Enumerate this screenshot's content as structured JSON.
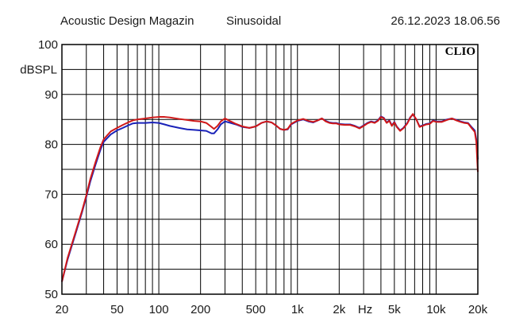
{
  "header": {
    "publisher": "Acoustic Design Magazin",
    "mode": "Sinusoidal",
    "timestamp": "26.12.2023 18.06.56"
  },
  "chart_data": {
    "type": "line",
    "brand": "CLIO",
    "ylabel": "dBSPL",
    "xunit": "Hz",
    "xscale": "log",
    "xlim": [
      20,
      20000
    ],
    "ylim": [
      50,
      100
    ],
    "yticks": [
      "50",
      "60",
      "70",
      "80",
      "90",
      "100"
    ],
    "xtick_labels": [
      {
        "value": 20,
        "label": "20"
      },
      {
        "value": 50,
        "label": "50"
      },
      {
        "value": 100,
        "label": "100"
      },
      {
        "value": 200,
        "label": "200"
      },
      {
        "value": 500,
        "label": "500"
      },
      {
        "value": 1000,
        "label": "1k"
      },
      {
        "value": 2000,
        "label": "2k"
      },
      {
        "value": 5000,
        "label": "5k"
      },
      {
        "value": 10000,
        "label": "10k"
      },
      {
        "value": 20000,
        "label": "20k"
      }
    ],
    "grid": true,
    "colors": {
      "series_red": "#d01818",
      "series_blue": "#1a22b8",
      "grid": "#000000"
    },
    "series": [
      {
        "color": "#1a22b8",
        "points": [
          [
            20,
            52.5
          ],
          [
            22,
            57
          ],
          [
            25,
            62
          ],
          [
            28,
            66.5
          ],
          [
            30,
            69.5
          ],
          [
            32,
            72.5
          ],
          [
            35,
            76
          ],
          [
            38,
            79
          ],
          [
            40,
            80.5
          ],
          [
            45,
            82
          ],
          [
            50,
            82.8
          ],
          [
            55,
            83.3
          ],
          [
            60,
            83.8
          ],
          [
            65,
            84.2
          ],
          [
            70,
            84.3
          ],
          [
            80,
            84.3
          ],
          [
            90,
            84.4
          ],
          [
            100,
            84.3
          ],
          [
            110,
            84
          ],
          [
            120,
            83.7
          ],
          [
            140,
            83.3
          ],
          [
            160,
            83
          ],
          [
            180,
            82.9
          ],
          [
            200,
            82.8
          ],
          [
            220,
            82.7
          ],
          [
            240,
            82.2
          ],
          [
            250,
            82.2
          ],
          [
            265,
            83
          ],
          [
            280,
            84
          ],
          [
            300,
            84.6
          ],
          [
            330,
            84.3
          ],
          [
            360,
            84
          ],
          [
            400,
            83.5
          ],
          [
            450,
            83.3
          ],
          [
            500,
            83.6
          ],
          [
            550,
            84.3
          ],
          [
            600,
            84.6
          ],
          [
            650,
            84.4
          ],
          [
            700,
            83.8
          ],
          [
            750,
            83.1
          ],
          [
            800,
            82.9
          ],
          [
            850,
            83
          ],
          [
            900,
            84
          ],
          [
            1000,
            84.7
          ],
          [
            1100,
            85
          ],
          [
            1200,
            84.6
          ],
          [
            1300,
            84.4
          ],
          [
            1400,
            84.8
          ],
          [
            1500,
            85.2
          ],
          [
            1600,
            84.7
          ],
          [
            1700,
            84.4
          ],
          [
            1800,
            84.3
          ],
          [
            1900,
            84.3
          ],
          [
            2000,
            84.1
          ],
          [
            2200,
            84
          ],
          [
            2400,
            84
          ],
          [
            2600,
            83.7
          ],
          [
            2800,
            83.3
          ],
          [
            3000,
            83.8
          ],
          [
            3200,
            84.3
          ],
          [
            3400,
            84.6
          ],
          [
            3600,
            84.4
          ],
          [
            3800,
            84.8
          ],
          [
            4000,
            85.6
          ],
          [
            4200,
            85.3
          ],
          [
            4400,
            84.4
          ],
          [
            4600,
            84.8
          ],
          [
            4800,
            83.8
          ],
          [
            5000,
            84.5
          ],
          [
            5200,
            83.6
          ],
          [
            5500,
            82.8
          ],
          [
            5800,
            83.3
          ],
          [
            6200,
            84.3
          ],
          [
            6500,
            85.4
          ],
          [
            6800,
            86
          ],
          [
            7200,
            85
          ],
          [
            7600,
            83.6
          ],
          [
            8000,
            83.8
          ],
          [
            8500,
            84.1
          ],
          [
            9000,
            84.2
          ],
          [
            9500,
            84.8
          ],
          [
            10000,
            84.6
          ],
          [
            11000,
            84.6
          ],
          [
            12000,
            85
          ],
          [
            13000,
            85.2
          ],
          [
            14000,
            84.9
          ],
          [
            15000,
            84.6
          ],
          [
            16000,
            84.4
          ],
          [
            17000,
            84.3
          ],
          [
            18000,
            83.5
          ],
          [
            19000,
            82.8
          ],
          [
            19500,
            81
          ],
          [
            20000,
            77
          ]
        ]
      },
      {
        "color": "#d01818",
        "points": [
          [
            20,
            52.5
          ],
          [
            22,
            57.3
          ],
          [
            25,
            62.3
          ],
          [
            28,
            66.8
          ],
          [
            30,
            69.8
          ],
          [
            32,
            73
          ],
          [
            35,
            76.5
          ],
          [
            38,
            79.5
          ],
          [
            40,
            81
          ],
          [
            45,
            82.6
          ],
          [
            50,
            83.3
          ],
          [
            55,
            83.9
          ],
          [
            60,
            84.4
          ],
          [
            65,
            84.8
          ],
          [
            70,
            85
          ],
          [
            80,
            85.2
          ],
          [
            90,
            85.4
          ],
          [
            100,
            85.5
          ],
          [
            110,
            85.5
          ],
          [
            120,
            85.4
          ],
          [
            140,
            85.1
          ],
          [
            160,
            84.9
          ],
          [
            180,
            84.7
          ],
          [
            200,
            84.6
          ],
          [
            220,
            84.3
          ],
          [
            240,
            83.5
          ],
          [
            250,
            83.1
          ],
          [
            265,
            83.7
          ],
          [
            280,
            84.6
          ],
          [
            300,
            85.2
          ],
          [
            330,
            84.6
          ],
          [
            360,
            84.1
          ],
          [
            400,
            83.6
          ],
          [
            450,
            83.3
          ],
          [
            500,
            83.6
          ],
          [
            550,
            84.3
          ],
          [
            600,
            84.6
          ],
          [
            650,
            84.4
          ],
          [
            700,
            83.8
          ],
          [
            750,
            83.1
          ],
          [
            800,
            82.9
          ],
          [
            850,
            83.1
          ],
          [
            900,
            84.1
          ],
          [
            1000,
            84.8
          ],
          [
            1100,
            85.1
          ],
          [
            1200,
            84.7
          ],
          [
            1300,
            84.5
          ],
          [
            1400,
            84.8
          ],
          [
            1500,
            85.2
          ],
          [
            1600,
            84.6
          ],
          [
            1700,
            84.3
          ],
          [
            1800,
            84.2
          ],
          [
            1900,
            84.2
          ],
          [
            2000,
            84
          ],
          [
            2200,
            83.9
          ],
          [
            2400,
            83.9
          ],
          [
            2600,
            83.6
          ],
          [
            2800,
            83.2
          ],
          [
            3000,
            83.7
          ],
          [
            3200,
            84.2
          ],
          [
            3400,
            84.5
          ],
          [
            3600,
            84.3
          ],
          [
            3800,
            84.7
          ],
          [
            4000,
            85.5
          ],
          [
            4200,
            85.2
          ],
          [
            4400,
            84.3
          ],
          [
            4600,
            84.7
          ],
          [
            4800,
            83.7
          ],
          [
            5000,
            84.4
          ],
          [
            5200,
            83.5
          ],
          [
            5500,
            82.7
          ],
          [
            5800,
            83.2
          ],
          [
            6200,
            84.2
          ],
          [
            6500,
            85.3
          ],
          [
            6800,
            86.1
          ],
          [
            7200,
            85
          ],
          [
            7600,
            83.5
          ],
          [
            8000,
            83.7
          ],
          [
            8500,
            84
          ],
          [
            9000,
            84.1
          ],
          [
            9500,
            84.7
          ],
          [
            10000,
            84.5
          ],
          [
            11000,
            84.5
          ],
          [
            12000,
            84.9
          ],
          [
            13000,
            85.2
          ],
          [
            14000,
            84.8
          ],
          [
            15000,
            84.5
          ],
          [
            16000,
            84.3
          ],
          [
            17000,
            84.2
          ],
          [
            18000,
            83.3
          ],
          [
            19000,
            82.5
          ],
          [
            19500,
            80.5
          ],
          [
            20000,
            74.5
          ]
        ]
      }
    ]
  }
}
